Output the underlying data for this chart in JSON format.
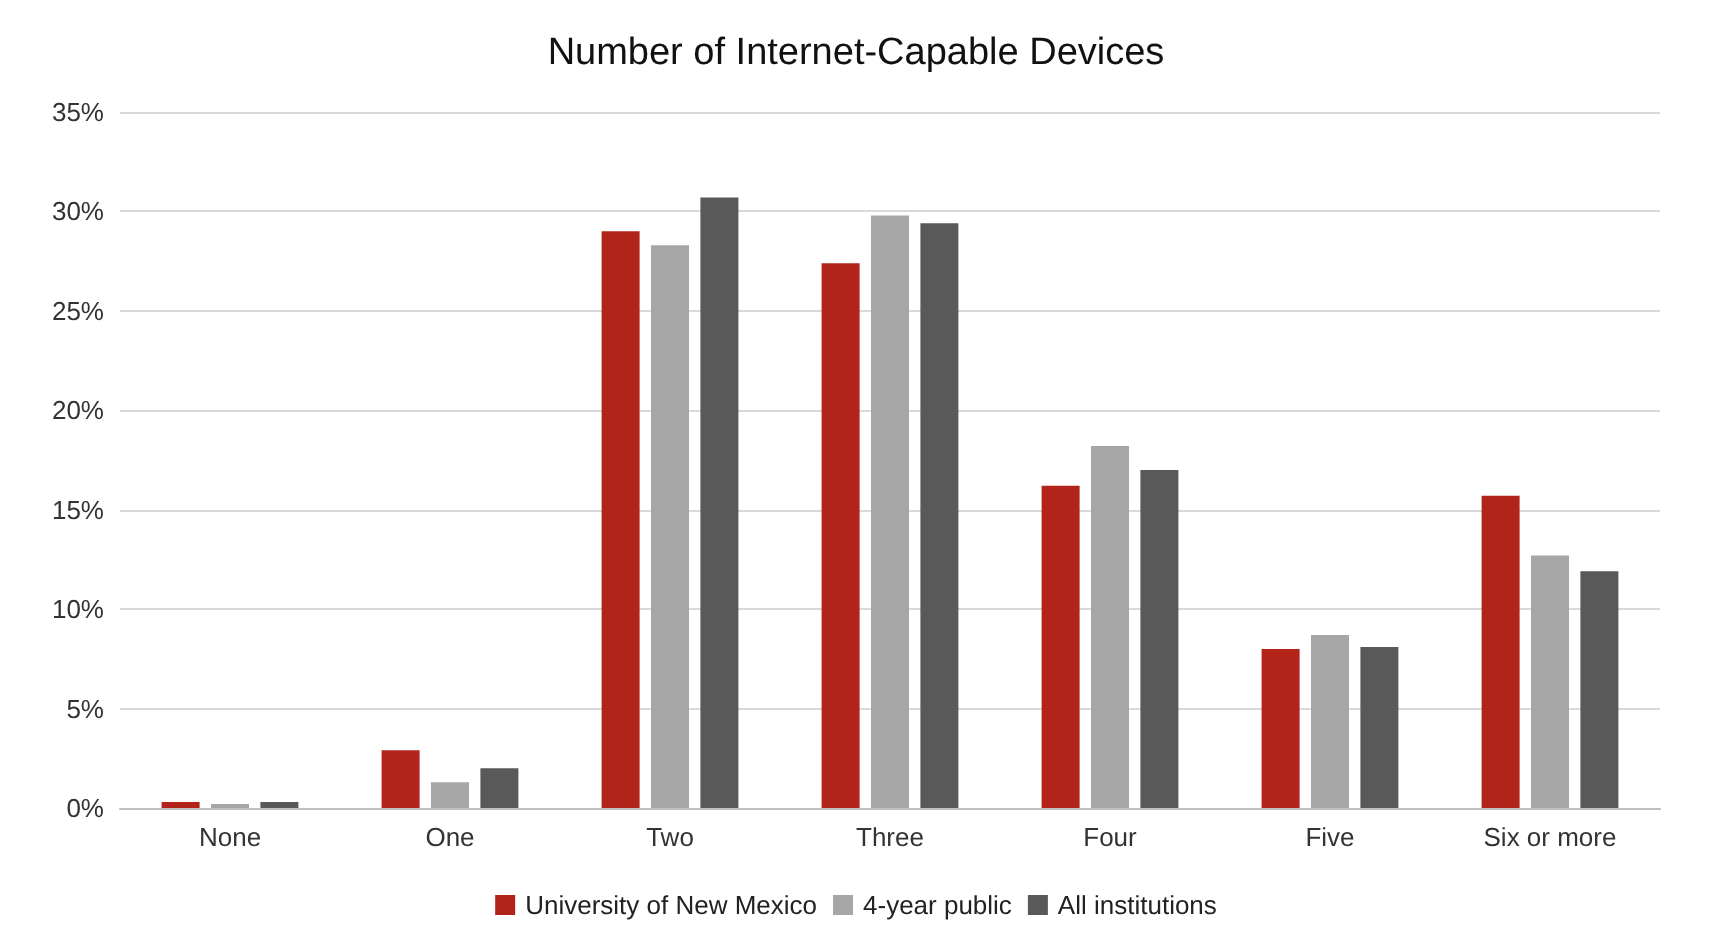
{
  "chart_data": {
    "type": "bar",
    "title": "Number of Internet-Capable Devices",
    "categories": [
      "None",
      "One",
      "Two",
      "Three",
      "Four",
      "Five",
      "Six or more"
    ],
    "series": [
      {
        "name": "University of New Mexico",
        "color": "#b22419",
        "values": [
          0.3,
          2.9,
          29.0,
          27.4,
          16.2,
          8.0,
          15.7
        ]
      },
      {
        "name": "4-year public",
        "color": "#a6a6a6",
        "values": [
          0.2,
          1.3,
          28.3,
          29.8,
          18.2,
          8.7,
          12.7
        ]
      },
      {
        "name": "All institutions",
        "color": "#595959",
        "values": [
          0.3,
          2.0,
          30.7,
          29.4,
          17.0,
          8.1,
          11.9
        ]
      }
    ],
    "ylim": [
      0,
      35
    ],
    "yticks": [
      {
        "value": 0,
        "label": "0%"
      },
      {
        "value": 5,
        "label": "5%"
      },
      {
        "value": 10,
        "label": "10%"
      },
      {
        "value": 15,
        "label": "15%"
      },
      {
        "value": 20,
        "label": "20%"
      },
      {
        "value": 25,
        "label": "25%"
      },
      {
        "value": 30,
        "label": "30%"
      },
      {
        "value": 35,
        "label": "35%"
      }
    ],
    "grid": "y",
    "legend": "bottom"
  }
}
